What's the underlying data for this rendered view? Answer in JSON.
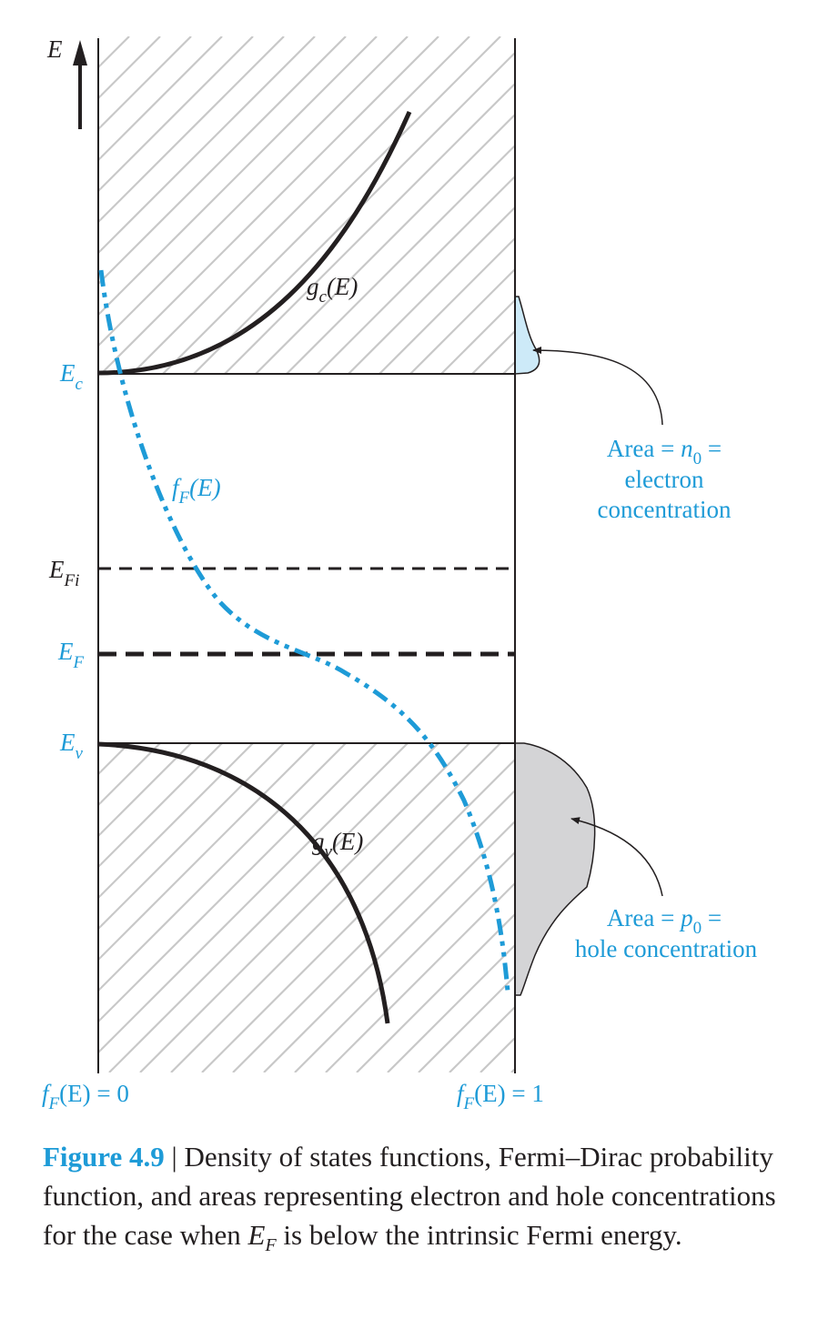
{
  "colors": {
    "accent": "#1e9bd7",
    "curve": "#231f20",
    "hatch": "#c8c8c8",
    "electron_fill": "#cdeaf8",
    "hole_fill": "#d4d4d6"
  },
  "axis": {
    "energy_label": "E"
  },
  "levels": {
    "ec": {
      "main": "E",
      "sub": "c"
    },
    "efi": {
      "main": "E",
      "sub": "Fi"
    },
    "ef": {
      "main": "E",
      "sub": "F"
    },
    "ev": {
      "main": "E",
      "sub": "v"
    }
  },
  "curves": {
    "gc": {
      "main": "g",
      "sub": "c",
      "arg": "(E)"
    },
    "gv": {
      "main": "g",
      "sub": "v",
      "arg": "(E)"
    },
    "ff": {
      "main": "f",
      "sub": "F",
      "arg": "(E)"
    }
  },
  "bottom_labels": {
    "left": {
      "main": "f",
      "sub": "F",
      "rest": "(E) = 0"
    },
    "right": {
      "main": "f",
      "sub": "F",
      "rest": "(E) = 1"
    }
  },
  "annotations": {
    "electron": {
      "area_prefix": "Area = ",
      "symbol_main": "n",
      "symbol_sub": "0",
      "area_suffix": " =",
      "line2": "electron",
      "line3": "concentration"
    },
    "hole": {
      "area_prefix": "Area = ",
      "symbol_main": "p",
      "symbol_sub": "0",
      "area_suffix": " =",
      "line2": "hole concentration"
    }
  },
  "caption": {
    "figure_number": "Figure 4.9",
    "separator": " | ",
    "text_1": "Density of states functions, Fermi–Dirac probability function, and areas representing electron and hole concentrations for the case when ",
    "ef_main": "E",
    "ef_sub": "F",
    "text_2": " is below the intrinsic Fermi energy."
  }
}
